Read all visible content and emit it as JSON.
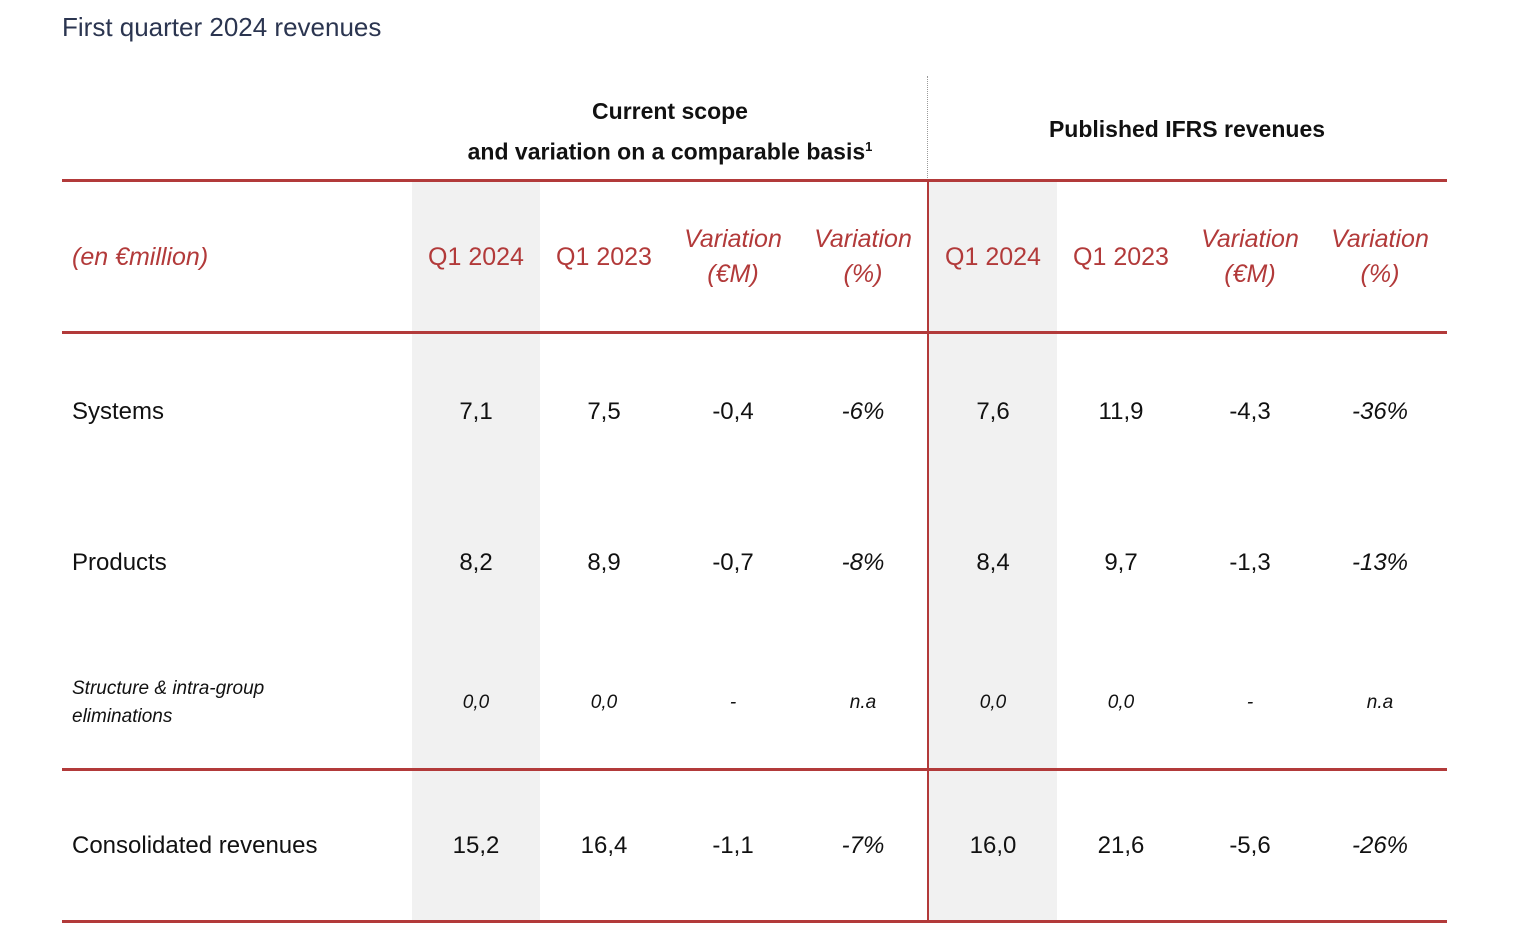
{
  "title": "First quarter 2024 revenues",
  "groups": {
    "current": {
      "line1": "Current scope",
      "line2": "and variation on a comparable basis",
      "footnote": "1"
    },
    "published": {
      "label": "Published IFRS revenues"
    }
  },
  "header": {
    "unit_label": "(en €million)",
    "columns": [
      {
        "line1": "Q1 2024",
        "line2": ""
      },
      {
        "line1": "Q1 2023",
        "line2": ""
      },
      {
        "line1": "Variation",
        "line2": "(€M)"
      },
      {
        "line1": "Variation",
        "line2": "(%)"
      },
      {
        "line1": "Q1 2024",
        "line2": ""
      },
      {
        "line1": "Q1 2023",
        "line2": ""
      },
      {
        "line1": "Variation",
        "line2": "(€M)"
      },
      {
        "line1": "Variation",
        "line2": "(%)"
      }
    ]
  },
  "rows": [
    {
      "label": "Systems",
      "values": [
        "7,1",
        "7,5",
        "-0,4",
        "-6%",
        "7,6",
        "11,9",
        "-4,3",
        "-36%"
      ]
    },
    {
      "label": "Products",
      "values": [
        "8,2",
        "8,9",
        "-0,7",
        "-8%",
        "8,4",
        "9,7",
        "-1,3",
        "-13%"
      ]
    },
    {
      "label_line1": "Structure & intra-group",
      "label_line2": "eliminations",
      "values": [
        "0,0",
        "0,0",
        "-",
        "n.a",
        "0,0",
        "0,0",
        "-",
        "n.a"
      ]
    },
    {
      "label": "Consolidated revenues",
      "values": [
        "15,2",
        "16,4",
        "-1,1",
        "-7%",
        "16,0",
        "21,6",
        "-5,6",
        "-26%"
      ]
    }
  ],
  "colors": {
    "accent": "#b23a3a",
    "title": "#2b3550",
    "shade": "#f1f1f1"
  }
}
